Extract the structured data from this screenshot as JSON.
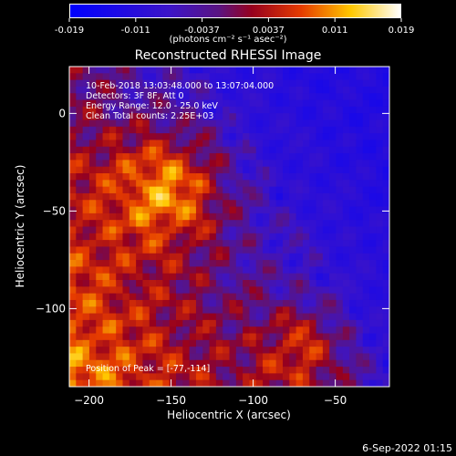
{
  "colorbar": {
    "ticks": [
      "-0.019",
      "-0.011",
      "-0.0037",
      "0.0037",
      "0.011",
      "0.019"
    ],
    "unit_label": "(photons cm⁻² s⁻¹ asec⁻²)",
    "min": -0.019,
    "max": 0.019
  },
  "chart_data": {
    "type": "heatmap",
    "title": "Reconstructed RHESSI Image",
    "xlabel": "Heliocentric X (arcsec)",
    "ylabel": "Heliocentric Y (arcsec)",
    "xlim": [
      -212,
      -17
    ],
    "ylim": [
      -140,
      24
    ],
    "xticks": [
      -200,
      -150,
      -100,
      -50
    ],
    "yticks": [
      0,
      -50,
      -100
    ],
    "colormap": "red-temperature (blue negative to white positive)",
    "peak": {
      "x": -77,
      "y": -114
    },
    "annotations": [
      "10-Feb-2018 13:03:48.000 to 13:07:04.000",
      "Detectors: 3F 8F, Att 0",
      "Energy Range: 12.0 - 25.0 keV",
      "Clean    Total counts: 2.25E+03",
      "Position of Peak = [-77,-114]"
    ]
  },
  "footer": {
    "date": "6-Sep-2022 01:15"
  }
}
